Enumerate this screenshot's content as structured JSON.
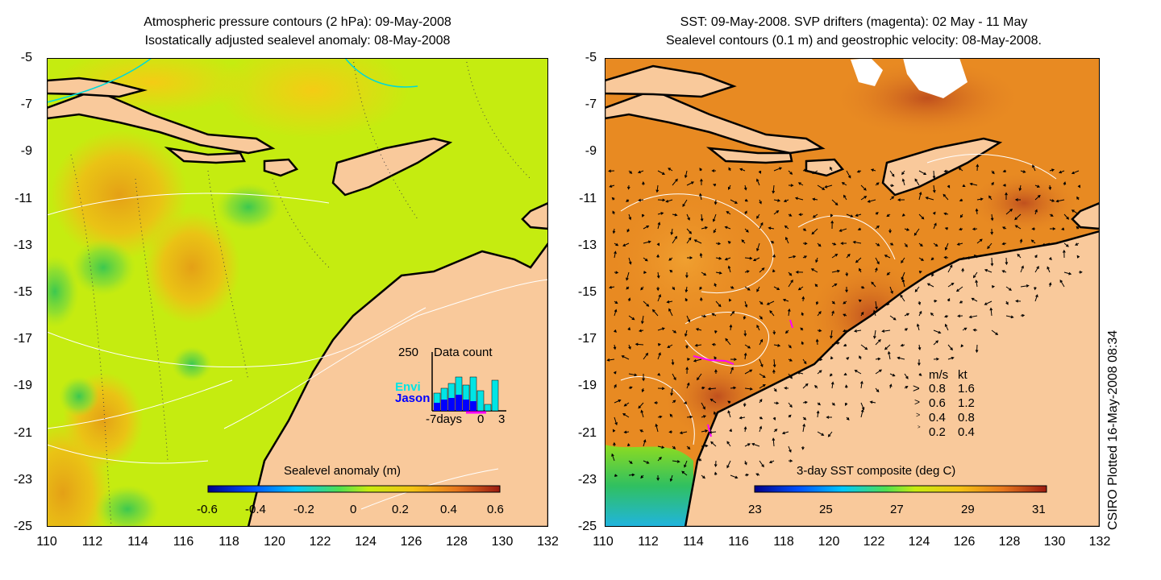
{
  "left_panel": {
    "title_line1": "Atmospheric pressure contours (2 hPa): 09-May-2008",
    "title_line2": "Isostatically adjusted sealevel anomaly: 08-May-2008",
    "colorbar_label": "Sealevel anomaly (m)",
    "colorbar_ticks": [
      "-0.6",
      "-0.4",
      "-0.2",
      "0",
      "0.2",
      "0.4",
      "0.6"
    ],
    "inset": {
      "max_label": "250",
      "title": "Data count",
      "series_labels": [
        "Envi",
        "Jason"
      ],
      "series_colors": [
        "#00e5e5",
        "#0000ff"
      ],
      "x_labels": [
        "-7days",
        "0",
        "3"
      ]
    }
  },
  "right_panel": {
    "title_line1": "SST: 09-May-2008. SVP drifters (magenta): 02 May - 11 May",
    "title_line2": "Sealevel contours (0.1 m) and geostrophic velocity: 08-May-2008.",
    "colorbar_label": "3-day SST composite (deg C)",
    "colorbar_ticks": [
      "23",
      "25",
      "27",
      "29",
      "31"
    ],
    "velocity_legend": {
      "header_ms": "m/s",
      "header_kt": "kt",
      "rows": [
        {
          "ms": "0.8",
          "kt": "1.6"
        },
        {
          "ms": "0.6",
          "kt": "1.2"
        },
        {
          "ms": "0.4",
          "kt": "0.8"
        },
        {
          "ms": "0.2",
          "kt": "0.4"
        }
      ]
    }
  },
  "y_ticks": [
    "-5",
    "-7",
    "-9",
    "-11",
    "-13",
    "-15",
    "-17",
    "-19",
    "-21",
    "-23",
    "-25"
  ],
  "x_ticks": [
    "110",
    "112",
    "114",
    "116",
    "118",
    "120",
    "122",
    "124",
    "126",
    "128",
    "130",
    "132"
  ],
  "credit": "CSIRO Plotted 16-May-2008 08:34",
  "colors": {
    "land": "#f9c99b",
    "sla_background": "#c5ec10",
    "sst_background": "#e88a22",
    "drifter": "#ff00ff",
    "pressure_contour": "#00d8d8"
  }
}
